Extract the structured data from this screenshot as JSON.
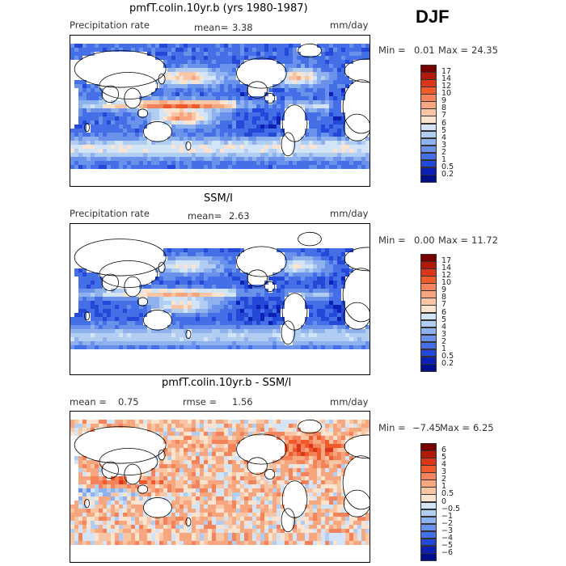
{
  "season": "DJF",
  "chart_data": [
    {
      "type": "heatmap",
      "title": "pmfT.colin.10yr.b (yrs 1980-1987)",
      "left_label": "Precipitation rate",
      "stat_label": "mean=",
      "stat_value": "3.38",
      "units": "mm/day",
      "min_label": "Min =",
      "min_value": "0.01",
      "max_label": "Max =",
      "max_value": "24.35",
      "colorbar_ticks": [
        "17",
        "14",
        "12",
        "10",
        "9",
        "8",
        "7",
        "6",
        "5",
        "4",
        "3",
        "2",
        "1",
        "0.5",
        "0.2"
      ],
      "colorbar_colors": [
        "#7a0000",
        "#b01a0a",
        "#d9361a",
        "#f05a2c",
        "#f4825a",
        "#f7a77f",
        "#f8c6a4",
        "#fbe4cf",
        "#d4e4f7",
        "#b1cdf2",
        "#8fb2ee",
        "#6a92ea",
        "#456fe6",
        "#2448d8",
        "#0d20b4",
        "#00108a"
      ],
      "field": "model_precip"
    },
    {
      "type": "heatmap",
      "title": "SSM/I",
      "left_label": "Precipitation rate",
      "stat_label": "mean=",
      "stat_value": "2.63",
      "units": "mm/day",
      "min_label": "Min =",
      "min_value": "0.00",
      "max_label": "Max =",
      "max_value": "11.72",
      "colorbar_ticks": [
        "17",
        "14",
        "12",
        "10",
        "9",
        "8",
        "7",
        "6",
        "5",
        "4",
        "3",
        "2",
        "1",
        "0.5",
        "0.2"
      ],
      "colorbar_colors": [
        "#7a0000",
        "#b01a0a",
        "#d9361a",
        "#f05a2c",
        "#f4825a",
        "#f7a77f",
        "#f8c6a4",
        "#fbe4cf",
        "#d4e4f7",
        "#b1cdf2",
        "#8fb2ee",
        "#6a92ea",
        "#456fe6",
        "#2448d8",
        "#0d20b4",
        "#00108a"
      ],
      "field": "obs_precip"
    },
    {
      "type": "heatmap",
      "title": "pmfT.colin.10yr.b - SSM/I",
      "stat_label": "mean =",
      "stat_value": "0.75",
      "rmse_label": "rmse =",
      "rmse_value": "1.56",
      "units": "mm/day",
      "min_label": "Min =",
      "min_value": "−7.45",
      "max_label": "Max =",
      "max_value": "6.25",
      "colorbar_ticks": [
        "6",
        "5",
        "4",
        "3",
        "2",
        "1",
        "0.5",
        "0",
        "−0.5",
        "−1",
        "−2",
        "−3",
        "−4",
        "−5",
        "−6"
      ],
      "colorbar_colors": [
        "#7a0000",
        "#b01a0a",
        "#d9361a",
        "#f05a2c",
        "#f4825a",
        "#f7a77f",
        "#f8c6a4",
        "#fbe4cf",
        "#d4e4f7",
        "#b1cdf2",
        "#8fb2ee",
        "#6a92ea",
        "#456fe6",
        "#2448d8",
        "#0d20b4",
        "#00108a"
      ],
      "field": "difference"
    }
  ]
}
